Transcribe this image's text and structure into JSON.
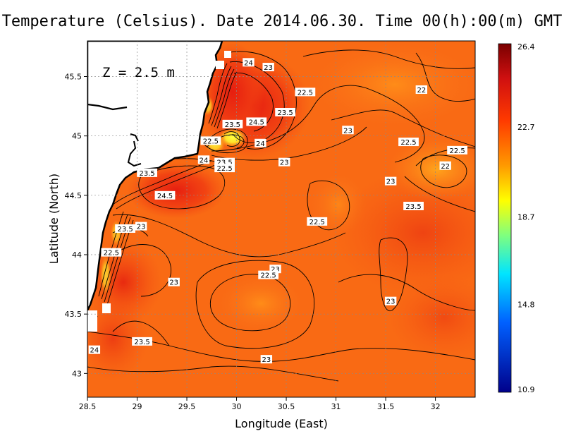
{
  "title": "Temperature (Celsius). Date 2014.06.30. Time 00(h):00(m) GMT",
  "depth_label": "Z = 2.5 m",
  "chart_data": {
    "type": "heatmap",
    "title": "Temperature (Celsius). Date 2014.06.30. Time 00(h):00(m) GMT",
    "xlabel": "Longitude (East)",
    "ylabel": "Latitude (North)",
    "xlim": [
      28.5,
      32.4
    ],
    "ylim": [
      42.8,
      45.8
    ],
    "xticks": [
      "28.5",
      "29",
      "29.5",
      "30",
      "30.5",
      "31",
      "31.5",
      "32"
    ],
    "yticks": [
      "43",
      "43.5",
      "44",
      "44.5",
      "45",
      "45.5"
    ],
    "grid": true,
    "colorbar": {
      "ticks": [
        "26.4",
        "22.7",
        "18.7",
        "14.8",
        "10.9"
      ],
      "min": 10.9,
      "max": 26.4
    },
    "contour_labels": [
      {
        "text": "24",
        "x": 30.12,
        "y": 45.62
      },
      {
        "text": "23",
        "x": 30.32,
        "y": 45.58
      },
      {
        "text": "22.5",
        "x": 30.69,
        "y": 45.37
      },
      {
        "text": "22",
        "x": 31.86,
        "y": 45.39
      },
      {
        "text": "23.5",
        "x": 30.49,
        "y": 45.2
      },
      {
        "text": "24.5",
        "x": 30.2,
        "y": 45.12
      },
      {
        "text": "23.5",
        "x": 29.96,
        "y": 45.1
      },
      {
        "text": "23",
        "x": 31.12,
        "y": 45.05
      },
      {
        "text": "22.5",
        "x": 29.74,
        "y": 44.96
      },
      {
        "text": "24",
        "x": 30.24,
        "y": 44.94
      },
      {
        "text": "22.5",
        "x": 31.73,
        "y": 44.95
      },
      {
        "text": "22.5",
        "x": 32.22,
        "y": 44.88
      },
      {
        "text": "24",
        "x": 29.67,
        "y": 44.8
      },
      {
        "text": "23.5",
        "x": 29.88,
        "y": 44.78
      },
      {
        "text": "22.5",
        "x": 29.88,
        "y": 44.73
      },
      {
        "text": "23",
        "x": 30.48,
        "y": 44.78
      },
      {
        "text": "22",
        "x": 32.1,
        "y": 44.75
      },
      {
        "text": "23.5",
        "x": 29.1,
        "y": 44.69
      },
      {
        "text": "23",
        "x": 31.55,
        "y": 44.62
      },
      {
        "text": "24.5",
        "x": 29.28,
        "y": 44.5
      },
      {
        "text": "23.5",
        "x": 31.78,
        "y": 44.41
      },
      {
        "text": "22.5",
        "x": 30.81,
        "y": 44.28
      },
      {
        "text": "23.5",
        "x": 28.88,
        "y": 44.22
      },
      {
        "text": "23",
        "x": 29.04,
        "y": 44.24
      },
      {
        "text": "22.5",
        "x": 28.74,
        "y": 44.02
      },
      {
        "text": "23",
        "x": 30.39,
        "y": 43.88
      },
      {
        "text": "22.5",
        "x": 30.32,
        "y": 43.83
      },
      {
        "text": "23",
        "x": 29.37,
        "y": 43.77
      },
      {
        "text": "23",
        "x": 31.55,
        "y": 43.61
      },
      {
        "text": "23.5",
        "x": 29.05,
        "y": 43.27
      },
      {
        "text": "24",
        "x": 28.57,
        "y": 43.2
      },
      {
        "text": "23",
        "x": 30.3,
        "y": 43.12
      }
    ]
  }
}
